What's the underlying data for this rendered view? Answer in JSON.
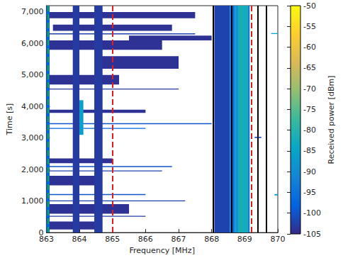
{
  "chart_data": {
    "type": "heatmap",
    "xlabel": "Frequency [MHz]",
    "ylabel": "Time [s]",
    "xlim": [
      863,
      870
    ],
    "xticks": [
      863,
      864,
      865,
      866,
      867,
      868,
      869,
      870
    ],
    "ylim": [
      0,
      7200
    ],
    "yticks": [
      0,
      1000,
      2000,
      3000,
      4000,
      5000,
      6000,
      7000
    ],
    "grid": false,
    "regions": [
      {
        "f": [
          863,
          867.5
        ],
        "t": [
          6800,
          7000
        ],
        "power": -104
      },
      {
        "f": [
          863.2,
          866.8
        ],
        "t": [
          6400,
          6600
        ],
        "power": -104
      },
      {
        "f": [
          863,
          866.5
        ],
        "t": [
          5800,
          6100
        ],
        "power": -104
      },
      {
        "f": [
          864.5,
          867
        ],
        "t": [
          5200,
          5600
        ],
        "power": -104
      },
      {
        "f": [
          863,
          865.2
        ],
        "t": [
          4700,
          5000
        ],
        "power": -104
      },
      {
        "f": [
          865.5,
          868
        ],
        "t": [
          6100,
          6250
        ],
        "power": -104
      },
      {
        "f": [
          863,
          865
        ],
        "t": [
          2200,
          2350
        ],
        "power": -104
      },
      {
        "f": [
          863,
          864.6
        ],
        "t": [
          1500,
          1800
        ],
        "power": -104
      },
      {
        "f": [
          863,
          865.5
        ],
        "t": [
          600,
          900
        ],
        "power": -104
      },
      {
        "f": [
          863,
          864.5
        ],
        "t": [
          100,
          350
        ],
        "power": -104
      },
      {
        "f": [
          863,
          866
        ],
        "t": [
          3800,
          3900
        ],
        "power": -104
      },
      {
        "f": [
          863,
          867.5
        ],
        "t": [
          6290,
          6320
        ],
        "power": -102
      },
      {
        "f": [
          863,
          867
        ],
        "t": [
          4540,
          4570
        ],
        "power": -103
      },
      {
        "f": [
          863,
          868
        ],
        "t": [
          3440,
          3470
        ],
        "power": -100
      },
      {
        "f": [
          863,
          866
        ],
        "t": [
          3290,
          3320
        ],
        "power": -98
      },
      {
        "f": [
          863,
          866.8
        ],
        "t": [
          2080,
          2110
        ],
        "power": -100
      },
      {
        "f": [
          863,
          866.5
        ],
        "t": [
          1940,
          1970
        ],
        "power": -102
      },
      {
        "f": [
          863,
          866
        ],
        "t": [
          1190,
          1220
        ],
        "power": -100
      },
      {
        "f": [
          863,
          867.2
        ],
        "t": [
          990,
          1020
        ],
        "power": -102
      },
      {
        "f": [
          863,
          866
        ],
        "t": [
          500,
          530
        ],
        "power": -103
      },
      {
        "f": [
          869.9,
          870
        ],
        "t": [
          1180,
          1220
        ],
        "power": -88
      },
      {
        "f": [
          869.8,
          870
        ],
        "t": [
          6300,
          6330
        ],
        "power": -85
      },
      {
        "f": [
          869.3,
          869.5
        ],
        "t": [
          3000,
          3040
        ],
        "power": -100
      },
      {
        "f": [
          863,
          863.1
        ],
        "t": [
          0,
          7200
        ],
        "power": -98
      },
      {
        "f": [
          863.8,
          864
        ],
        "t": [
          0,
          7200
        ],
        "power": -103
      },
      {
        "f": [
          864.45,
          864.7
        ],
        "t": [
          0,
          7200
        ],
        "power": -103
      },
      {
        "f": [
          868.08,
          868.55
        ],
        "t": [
          0,
          7200
        ],
        "power": -102
      },
      {
        "f": [
          868.55,
          868.7
        ],
        "t": [
          0,
          7200
        ],
        "power": -96
      },
      {
        "f": [
          868.7,
          868.8
        ],
        "t": [
          0,
          7200
        ],
        "power": -88
      },
      {
        "f": [
          868.8,
          869.1
        ],
        "t": [
          0,
          7200
        ],
        "power": -82
      },
      {
        "f": [
          869.1,
          869.15
        ],
        "t": [
          0,
          7200
        ],
        "power": -92
      },
      {
        "f": [
          864,
          864.12
        ],
        "t": [
          3100,
          4200
        ],
        "power": -86
      }
    ],
    "lines": [
      {
        "x": 863.05,
        "color": "#2ca02c",
        "line_style": "dashed"
      },
      {
        "x": 865,
        "color": "#e41a1c",
        "line_style": "dashed"
      },
      {
        "x": 868.05,
        "color": "#000000",
        "line_style": "solid"
      },
      {
        "x": 868.6,
        "color": "#000000",
        "line_style": "solid"
      },
      {
        "x": 869.2,
        "color": "#e41a1c",
        "line_style": "dashed"
      },
      {
        "x": 869.4,
        "color": "#000000",
        "line_style": "solid"
      },
      {
        "x": 869.65,
        "color": "#000000",
        "line_style": "solid"
      }
    ],
    "colorbar": {
      "label": "Received power [dBm]",
      "range": [
        -105,
        -50
      ],
      "ticks": [
        -105,
        -100,
        -95,
        -90,
        -85,
        -80,
        -75,
        -70,
        -65,
        -60,
        -55,
        -50
      ]
    }
  }
}
